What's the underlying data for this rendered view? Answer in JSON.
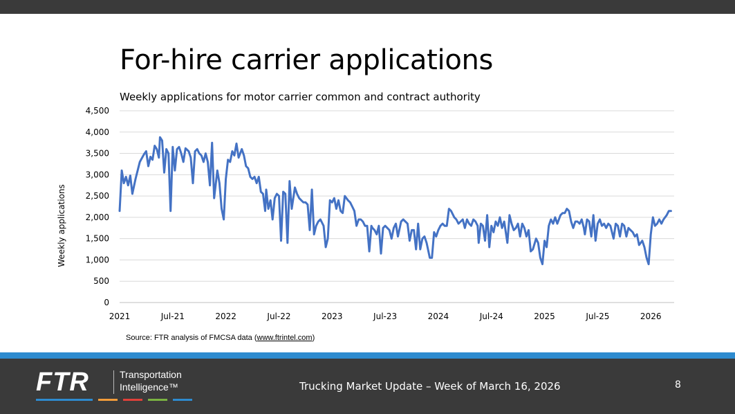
{
  "slide": {
    "title": "For-hire carrier applications",
    "subtitle": "Weekly applications for motor carrier common and contract authority",
    "source_prefix": "Source: FTR analysis of FMCSA data (",
    "source_link": "www.ftrintel.com",
    "source_suffix": ")",
    "footer_text": "Trucking Market Update – Week of March 16, 2026",
    "page_number": "8"
  },
  "logo": {
    "name": "FTR",
    "tagline_1": "Transportation",
    "tagline_2": "Intelligence™",
    "stripe_colors": [
      "#2e8bcf",
      "#f39c3a",
      "#e0413a",
      "#7ab342",
      "#2e8bcf"
    ]
  },
  "colors": {
    "line": "#4472c4",
    "grid": "#d9d9d9",
    "top_bar": "#3a3a3a",
    "accent_band": "#2e8bcf"
  },
  "chart_data": {
    "type": "line",
    "title": "Weekly applications for motor carrier common and contract authority",
    "xlabel": "",
    "ylabel": "Weekly applications",
    "ylim": [
      0,
      4500
    ],
    "yticks": [
      0,
      500,
      1000,
      1500,
      2000,
      2500,
      3000,
      3500,
      4000,
      4500
    ],
    "ytick_labels": [
      "0",
      "500",
      "1,000",
      "1,500",
      "2,000",
      "2,500",
      "3,000",
      "3,500",
      "4,000",
      "4,500"
    ],
    "xlim": [
      2021.0,
      2026.22
    ],
    "xticks": [
      2021.0,
      2021.5,
      2022.0,
      2022.5,
      2023.0,
      2023.5,
      2024.0,
      2024.5,
      2025.0,
      2025.5,
      2026.0
    ],
    "xtick_labels": [
      "2021",
      "Jul-21",
      "2022",
      "Jul-22",
      "2023",
      "Jul-23",
      "2024",
      "Jul-24",
      "2025",
      "Jul-25",
      "2026"
    ],
    "grid": true,
    "legend": "none",
    "series": [
      {
        "name": "Weekly applications",
        "values": [
          [
            2021.0,
            2150
          ],
          [
            2021.02,
            3100
          ],
          [
            2021.04,
            2800
          ],
          [
            2021.06,
            2950
          ],
          [
            2021.08,
            2750
          ],
          [
            2021.1,
            2980
          ],
          [
            2021.12,
            2550
          ],
          [
            2021.15,
            2900
          ],
          [
            2021.19,
            3300
          ],
          [
            2021.23,
            3480
          ],
          [
            2021.25,
            3550
          ],
          [
            2021.27,
            3200
          ],
          [
            2021.29,
            3420
          ],
          [
            2021.31,
            3350
          ],
          [
            2021.33,
            3680
          ],
          [
            2021.35,
            3600
          ],
          [
            2021.37,
            3400
          ],
          [
            2021.38,
            3880
          ],
          [
            2021.4,
            3800
          ],
          [
            2021.42,
            3050
          ],
          [
            2021.44,
            3600
          ],
          [
            2021.46,
            3500
          ],
          [
            2021.48,
            2150
          ],
          [
            2021.5,
            3650
          ],
          [
            2021.52,
            3100
          ],
          [
            2021.54,
            3600
          ],
          [
            2021.56,
            3650
          ],
          [
            2021.58,
            3500
          ],
          [
            2021.6,
            3300
          ],
          [
            2021.62,
            3620
          ],
          [
            2021.65,
            3550
          ],
          [
            2021.67,
            3400
          ],
          [
            2021.69,
            2800
          ],
          [
            2021.71,
            3550
          ],
          [
            2021.73,
            3600
          ],
          [
            2021.75,
            3500
          ],
          [
            2021.77,
            3450
          ],
          [
            2021.79,
            3300
          ],
          [
            2021.81,
            3500
          ],
          [
            2021.83,
            3300
          ],
          [
            2021.85,
            2750
          ],
          [
            2021.87,
            3750
          ],
          [
            2021.89,
            2450
          ],
          [
            2021.92,
            3100
          ],
          [
            2021.94,
            2800
          ],
          [
            2021.96,
            2200
          ],
          [
            2021.98,
            1950
          ],
          [
            2022.0,
            2900
          ],
          [
            2022.02,
            3350
          ],
          [
            2022.04,
            3300
          ],
          [
            2022.06,
            3550
          ],
          [
            2022.08,
            3450
          ],
          [
            2022.1,
            3730
          ],
          [
            2022.12,
            3400
          ],
          [
            2022.15,
            3600
          ],
          [
            2022.17,
            3450
          ],
          [
            2022.19,
            3200
          ],
          [
            2022.21,
            3150
          ],
          [
            2022.23,
            2950
          ],
          [
            2022.25,
            2900
          ],
          [
            2022.27,
            2950
          ],
          [
            2022.29,
            2800
          ],
          [
            2022.31,
            2950
          ],
          [
            2022.33,
            2600
          ],
          [
            2022.35,
            2550
          ],
          [
            2022.37,
            2150
          ],
          [
            2022.38,
            2650
          ],
          [
            2022.4,
            2200
          ],
          [
            2022.42,
            2400
          ],
          [
            2022.44,
            1950
          ],
          [
            2022.46,
            2450
          ],
          [
            2022.48,
            2550
          ],
          [
            2022.5,
            2500
          ],
          [
            2022.52,
            1450
          ],
          [
            2022.54,
            2600
          ],
          [
            2022.56,
            2550
          ],
          [
            2022.58,
            1400
          ],
          [
            2022.6,
            2850
          ],
          [
            2022.62,
            2200
          ],
          [
            2022.65,
            2700
          ],
          [
            2022.67,
            2550
          ],
          [
            2022.69,
            2450
          ],
          [
            2022.71,
            2400
          ],
          [
            2022.73,
            2350
          ],
          [
            2022.75,
            2350
          ],
          [
            2022.77,
            2300
          ],
          [
            2022.79,
            1700
          ],
          [
            2022.81,
            2650
          ],
          [
            2022.83,
            1600
          ],
          [
            2022.85,
            1800
          ],
          [
            2022.87,
            1900
          ],
          [
            2022.89,
            1950
          ],
          [
            2022.92,
            1800
          ],
          [
            2022.94,
            1300
          ],
          [
            2022.96,
            1500
          ],
          [
            2022.98,
            2400
          ],
          [
            2023.0,
            2350
          ],
          [
            2023.02,
            2450
          ],
          [
            2023.04,
            2200
          ],
          [
            2023.06,
            2400
          ],
          [
            2023.08,
            2150
          ],
          [
            2023.1,
            2100
          ],
          [
            2023.12,
            2500
          ],
          [
            2023.15,
            2400
          ],
          [
            2023.17,
            2350
          ],
          [
            2023.19,
            2250
          ],
          [
            2023.21,
            2150
          ],
          [
            2023.23,
            1800
          ],
          [
            2023.25,
            1950
          ],
          [
            2023.27,
            1950
          ],
          [
            2023.29,
            1900
          ],
          [
            2023.31,
            1800
          ],
          [
            2023.33,
            1800
          ],
          [
            2023.35,
            1200
          ],
          [
            2023.37,
            1800
          ],
          [
            2023.38,
            1750
          ],
          [
            2023.4,
            1700
          ],
          [
            2023.42,
            1600
          ],
          [
            2023.44,
            1800
          ],
          [
            2023.46,
            1150
          ],
          [
            2023.48,
            1750
          ],
          [
            2023.5,
            1800
          ],
          [
            2023.52,
            1750
          ],
          [
            2023.54,
            1700
          ],
          [
            2023.56,
            1500
          ],
          [
            2023.58,
            1750
          ],
          [
            2023.6,
            1850
          ],
          [
            2023.62,
            1550
          ],
          [
            2023.65,
            1900
          ],
          [
            2023.67,
            1950
          ],
          [
            2023.69,
            1900
          ],
          [
            2023.71,
            1850
          ],
          [
            2023.73,
            1450
          ],
          [
            2023.75,
            1700
          ],
          [
            2023.77,
            1700
          ],
          [
            2023.79,
            1250
          ],
          [
            2023.81,
            1850
          ],
          [
            2023.83,
            1250
          ],
          [
            2023.85,
            1500
          ],
          [
            2023.87,
            1550
          ],
          [
            2023.89,
            1400
          ],
          [
            2023.92,
            1050
          ],
          [
            2023.94,
            1050
          ],
          [
            2023.96,
            1650
          ],
          [
            2023.98,
            1550
          ],
          [
            2024.0,
            1700
          ],
          [
            2024.02,
            1800
          ],
          [
            2024.04,
            1850
          ],
          [
            2024.06,
            1800
          ],
          [
            2024.08,
            1800
          ],
          [
            2024.1,
            2200
          ],
          [
            2024.12,
            2150
          ],
          [
            2024.15,
            2000
          ],
          [
            2024.17,
            1950
          ],
          [
            2024.19,
            1850
          ],
          [
            2024.21,
            1900
          ],
          [
            2024.23,
            1950
          ],
          [
            2024.25,
            1750
          ],
          [
            2024.27,
            1950
          ],
          [
            2024.29,
            1850
          ],
          [
            2024.31,
            1800
          ],
          [
            2024.33,
            1950
          ],
          [
            2024.35,
            1900
          ],
          [
            2024.37,
            1800
          ],
          [
            2024.38,
            1400
          ],
          [
            2024.4,
            1850
          ],
          [
            2024.42,
            1800
          ],
          [
            2024.44,
            1450
          ],
          [
            2024.46,
            2050
          ],
          [
            2024.48,
            1300
          ],
          [
            2024.5,
            1800
          ],
          [
            2024.52,
            1650
          ],
          [
            2024.54,
            1900
          ],
          [
            2024.56,
            1800
          ],
          [
            2024.58,
            2000
          ],
          [
            2024.6,
            1750
          ],
          [
            2024.62,
            1900
          ],
          [
            2024.65,
            1400
          ],
          [
            2024.67,
            2050
          ],
          [
            2024.69,
            1850
          ],
          [
            2024.71,
            1700
          ],
          [
            2024.73,
            1750
          ],
          [
            2024.75,
            1850
          ],
          [
            2024.77,
            1550
          ],
          [
            2024.79,
            1850
          ],
          [
            2024.81,
            1750
          ],
          [
            2024.83,
            1550
          ],
          [
            2024.85,
            1700
          ],
          [
            2024.87,
            1200
          ],
          [
            2024.89,
            1250
          ],
          [
            2024.92,
            1500
          ],
          [
            2024.94,
            1400
          ],
          [
            2024.96,
            1050
          ],
          [
            2024.98,
            900
          ],
          [
            2025.0,
            1450
          ],
          [
            2025.02,
            1300
          ],
          [
            2025.04,
            1800
          ],
          [
            2025.06,
            1950
          ],
          [
            2025.08,
            1850
          ],
          [
            2025.1,
            2000
          ],
          [
            2025.12,
            1850
          ],
          [
            2025.15,
            2050
          ],
          [
            2025.17,
            2100
          ],
          [
            2025.19,
            2100
          ],
          [
            2025.21,
            2200
          ],
          [
            2025.23,
            2150
          ],
          [
            2025.25,
            1900
          ],
          [
            2025.27,
            1750
          ],
          [
            2025.29,
            1900
          ],
          [
            2025.31,
            1900
          ],
          [
            2025.33,
            1850
          ],
          [
            2025.35,
            1950
          ],
          [
            2025.37,
            1750
          ],
          [
            2025.38,
            1600
          ],
          [
            2025.4,
            1950
          ],
          [
            2025.42,
            1900
          ],
          [
            2025.44,
            1550
          ],
          [
            2025.46,
            2050
          ],
          [
            2025.48,
            1450
          ],
          [
            2025.5,
            1850
          ],
          [
            2025.52,
            1950
          ],
          [
            2025.54,
            1800
          ],
          [
            2025.56,
            1850
          ],
          [
            2025.58,
            1750
          ],
          [
            2025.6,
            1850
          ],
          [
            2025.62,
            1800
          ],
          [
            2025.65,
            1500
          ],
          [
            2025.67,
            1850
          ],
          [
            2025.69,
            1800
          ],
          [
            2025.71,
            1550
          ],
          [
            2025.73,
            1850
          ],
          [
            2025.75,
            1800
          ],
          [
            2025.77,
            1550
          ],
          [
            2025.79,
            1750
          ],
          [
            2025.81,
            1700
          ],
          [
            2025.83,
            1650
          ],
          [
            2025.85,
            1550
          ],
          [
            2025.87,
            1600
          ],
          [
            2025.89,
            1350
          ],
          [
            2025.92,
            1450
          ],
          [
            2025.94,
            1300
          ],
          [
            2025.96,
            1050
          ],
          [
            2025.98,
            900
          ],
          [
            2026.0,
            1600
          ],
          [
            2026.02,
            2000
          ],
          [
            2026.04,
            1800
          ],
          [
            2026.06,
            1850
          ],
          [
            2026.08,
            1950
          ],
          [
            2026.1,
            1850
          ],
          [
            2026.12,
            1950
          ],
          [
            2026.15,
            2050
          ],
          [
            2026.17,
            2150
          ],
          [
            2026.19,
            2150
          ]
        ]
      }
    ]
  }
}
